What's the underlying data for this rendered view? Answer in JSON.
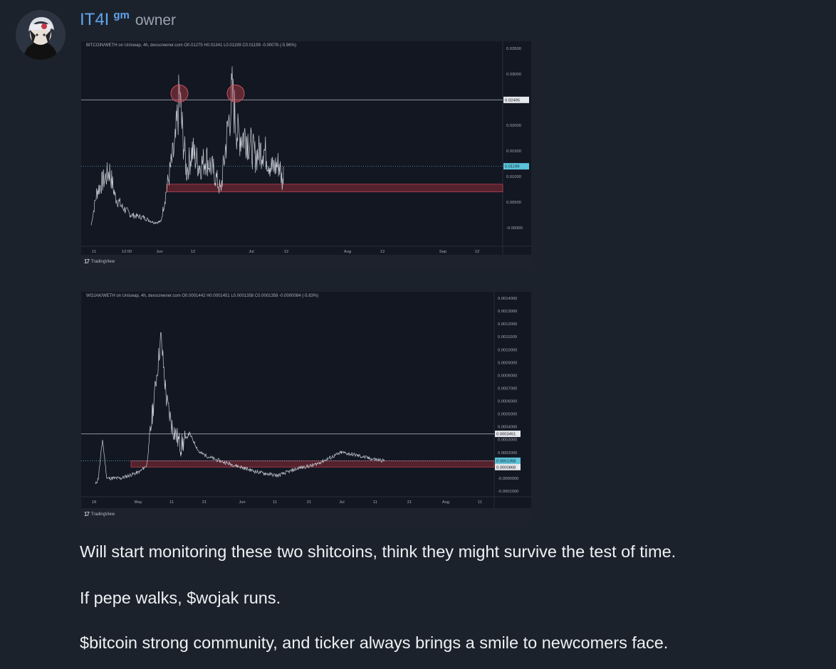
{
  "post": {
    "author": "IT4I",
    "badge": "gm",
    "role": "owner",
    "paragraphs": [
      "Will start monitoring these two shitcoins, think they might survive the test of time.",
      "If pepe walks, $wojak runs.",
      "$bitcoin strong community, and ticker always brings a smile to newcomers face."
    ]
  },
  "colors": {
    "background": "#1c222b",
    "author": "#62a4ee",
    "chart_bg": "#131722",
    "line": "#c8ccd4",
    "support_zone": "#8b2b36",
    "current_price": "#5bc3d9"
  },
  "chart_data": [
    {
      "type": "line",
      "title": "BITCOIN/WETH on Uniswap, 4h, dexscreener.com O0.01275 H0.01341 L0.01199 C0.01199 -0.00076 (-5.96%)",
      "x_ticks": [
        "11",
        "12:00",
        "Jun",
        "12",
        "Jul",
        "12",
        "Aug",
        "12",
        "Sep",
        "12"
      ],
      "y_ticks": [
        "0.03500",
        "0.03000",
        "0.02500",
        "0.02000",
        "0.01500",
        "0.01000",
        "0.00500",
        "-0.00000"
      ],
      "ylim": [
        0,
        0.035
      ],
      "price_labels": {
        "resistance": "0.02495",
        "current": "0.01199"
      },
      "resistance": 0.02495,
      "current": 0.01199,
      "support_zone": [
        0.007,
        0.0085
      ],
      "peaks_marked": 2,
      "footer": "TradingView"
    },
    {
      "type": "line",
      "title": "WOJAK/WETH on Uniswap, 4h, dexscreener.com O0.0001442 H0.0001451 L0.0001358 C0.0001358 -0.0000084 (-5.83%)",
      "x_ticks": [
        "18",
        "May",
        "11",
        "21",
        "Jun",
        "11",
        "21",
        "Jul",
        "11",
        "21",
        "Aug",
        "11"
      ],
      "y_ticks": [
        "0.0014000",
        "0.0013000",
        "0.0012000",
        "0.0011000",
        "0.0010000",
        "0.0009000",
        "0.0008000",
        "0.0007000",
        "0.0006000",
        "0.0005000",
        "0.0004000",
        "0.0003000",
        "0.0002000",
        "0.0001000",
        "-0.0000000",
        "-0.0001000"
      ],
      "ylim": [
        -0.0001,
        0.0014
      ],
      "price_labels": {
        "resistance": "0.0003451",
        "current": "0.0001358",
        "support": "0.0000868"
      },
      "resistance": 0.0003451,
      "current": 0.0001358,
      "support_zone": [
        8.68e-05,
        0.000135
      ],
      "footer": "TradingView"
    }
  ]
}
